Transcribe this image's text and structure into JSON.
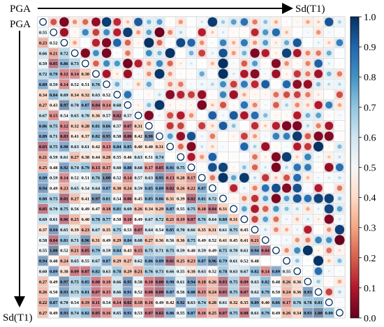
{
  "chart_data": {
    "type": "heatmap",
    "variant": "correlation-matrix-mixed",
    "title": "",
    "corner_label": "PGA",
    "row_start_label": "PGA",
    "row_end_label": "Sd(T1)",
    "col_start_label": "PGA",
    "col_end_label": "Sd(T1)",
    "n": 26,
    "lower_triangle_values": [
      [],
      [
        0.55
      ],
      [
        0.23,
        0.52
      ],
      [
        0.66,
        0.21,
        0.72
      ],
      [
        0.59,
        0.05,
        0.86,
        0.73
      ],
      [
        0.72,
        0.79,
        0.12,
        0.14,
        0.3
      ],
      [
        0.89,
        0.59,
        0.14,
        0.52,
        0.51,
        0.76
      ],
      [
        0.34,
        0.84,
        0.69,
        0.34,
        0.32,
        0.63,
        0.52
      ],
      [
        0.27,
        0.43,
        0.97,
        0.7,
        0.87,
        0.04,
        0.14,
        0.68
      ],
      [
        0.67,
        0.15,
        0.54,
        0.65,
        0.7,
        0.36,
        0.57,
        0.02,
        0.57
      ],
      [
        0.86,
        0.75,
        0.12,
        0.32,
        0.28,
        0.81,
        0.86,
        0.57,
        0.07,
        0.31
      ],
      [
        0.89,
        0.71,
        0.03,
        0.41,
        0.37,
        0.82,
        0.95,
        0.58,
        0.0,
        0.42,
        0.98
      ],
      [
        0.03,
        0.75,
        0.9,
        0.63,
        0.61,
        0.42,
        0.13,
        0.84,
        0.85,
        0.4,
        0.4,
        0.31
      ],
      [
        0.21,
        0.59,
        0.61,
        0.27,
        0.38,
        0.44,
        0.28,
        0.55,
        0.46,
        0.63,
        0.51,
        0.74
      ],
      [
        0.25,
        0.48,
        0.92,
        0.74,
        0.79,
        0.13,
        0.17,
        0.6,
        0.88,
        0.68,
        0.17,
        0.05,
        0.91,
        0.75
      ],
      [
        0.89,
        0.59,
        0.14,
        0.52,
        0.51,
        0.76,
        1.0,
        0.52,
        0.14,
        0.57,
        0.63,
        0.95,
        0.13,
        0.28,
        0.17
      ],
      [
        0.94,
        0.49,
        0.23,
        0.65,
        0.54,
        0.64,
        0.87,
        0.3,
        0.24,
        0.59,
        0.85,
        0.89,
        0.02,
        0.26,
        0.22,
        0.87
      ],
      [
        0.8,
        0.75,
        0.01,
        0.27,
        0.41,
        0.97,
        0.81,
        0.54,
        0.06,
        0.45,
        0.85,
        0.86,
        0.31,
        0.39,
        0.02,
        0.81,
        0.72
      ],
      [
        0.05,
        0.7,
        0.75,
        0.56,
        0.49,
        0.47,
        0.18,
        0.81,
        0.69,
        0.26,
        0.34,
        0.29,
        0.87,
        0.55,
        0.75,
        0.18,
        0.04,
        0.31
      ],
      [
        0.69,
        0.61,
        0.06,
        0.25,
        0.4,
        0.78,
        0.77,
        0.5,
        0.1,
        0.49,
        0.67,
        0.72,
        0.21,
        0.19,
        0.07,
        0.76,
        0.64,
        0.8,
        0.31
      ],
      [
        0.37,
        0.94,
        0.65,
        0.39,
        0.23,
        0.67,
        0.35,
        0.75,
        0.53,
        0.07,
        0.64,
        0.54,
        0.85,
        0.7,
        0.66,
        0.35,
        0.31,
        0.61,
        0.75,
        0.45
      ],
      [
        0.58,
        0.04,
        0.81,
        0.71,
        0.96,
        0.31,
        0.49,
        0.29,
        0.84,
        0.68,
        0.27,
        0.36,
        0.56,
        0.36,
        0.75,
        0.49,
        0.52,
        0.41,
        0.45,
        0.41,
        0.21
      ],
      [
        0.55,
        1.0,
        0.52,
        0.21,
        0.05,
        0.79,
        0.59,
        0.84,
        0.43,
        0.15,
        0.75,
        0.71,
        0.75,
        0.59,
        0.48,
        0.59,
        0.49,
        0.75,
        0.7,
        0.61,
        0.94,
        0.04
      ],
      [
        0.94,
        0.48,
        0.24,
        0.65,
        0.55,
        0.67,
        0.87,
        0.29,
        0.27,
        0.62,
        0.86,
        0.89,
        0.01,
        0.25,
        0.23,
        0.87,
        0.96,
        0.79,
        0.61,
        0.52,
        0.48
      ],
      [
        0.6,
        0.89,
        0.38,
        0.09,
        0.07,
        0.82,
        0.63,
        0.78,
        0.29,
        0.21,
        0.76,
        0.73,
        0.66,
        0.55,
        0.38,
        0.63,
        0.52,
        0.78,
        0.63,
        0.67,
        0.82,
        0.14,
        0.89,
        0.55
      ],
      [
        0.27,
        0.49,
        0.97,
        0.75,
        0.85,
        0.08,
        0.18,
        0.66,
        0.95,
        0.58,
        0.1,
        0.0,
        0.9,
        0.61,
        0.94,
        0.18,
        0.26,
        0.03,
        0.75,
        0.09,
        0.63,
        0.82,
        0.48,
        0.26,
        0.36
      ]
    ],
    "extra_rows_values": [
      [
        0.26,
        0.5,
        0.93,
        0.73,
        0.81,
        0.07,
        0.15,
        0.66,
        0.91,
        0.52,
        0.08,
        0.0,
        0.87,
        0.56,
        0.88,
        0.15,
        0.24,
        0.05,
        0.75,
        0.07,
        0.62,
        0.79,
        0.5,
        0.24,
        0.36,
        0.93
      ],
      [
        0.22,
        0.87,
        0.7,
        0.54,
        0.19,
        0.11,
        0.54,
        0.14,
        0.02,
        0.18,
        0.16,
        0.49,
        0.42,
        0.92,
        0.63,
        0.74,
        0.28,
        0.61,
        0.32,
        0.35,
        0.89,
        0.4,
        0.86,
        0.17,
        0.76,
        0.78,
        0.81
      ],
      [
        0.27,
        0.49,
        0.93,
        0.74,
        0.82,
        0.05,
        0.16,
        0.65,
        0.91,
        0.53,
        0.07,
        0.02,
        0.86,
        0.55,
        0.87,
        0.16,
        0.25,
        0.07,
        0.75,
        0.08,
        0.61,
        0.79,
        0.49,
        0.26,
        0.34,
        0.93,
        1.0,
        0.8
      ]
    ],
    "colorbar": {
      "min": 0.0,
      "max": 1.0,
      "ticks": [
        "0.0",
        "0.1",
        "0.2",
        "0.3",
        "0.4",
        "0.5",
        "0.6",
        "0.7",
        "0.8",
        "0.9",
        "1.0"
      ],
      "low_color": "#67001f",
      "mid_color": "#f7f7f7",
      "high_color": "#053061"
    },
    "grid": true
  }
}
